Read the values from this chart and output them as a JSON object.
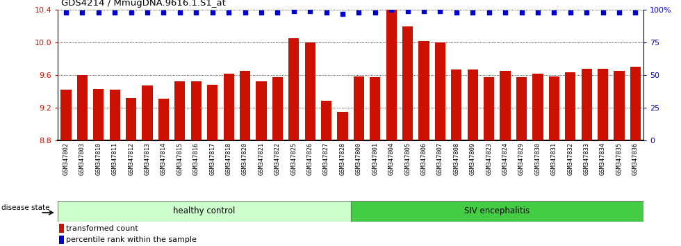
{
  "title": "GDS4214 / MmugDNA.9616.1.S1_at",
  "samples": [
    "GSM347802",
    "GSM347803",
    "GSM347810",
    "GSM347811",
    "GSM347812",
    "GSM347813",
    "GSM347814",
    "GSM347815",
    "GSM347816",
    "GSM347817",
    "GSM347818",
    "GSM347820",
    "GSM347821",
    "GSM347822",
    "GSM347825",
    "GSM347826",
    "GSM347827",
    "GSM347828",
    "GSM347800",
    "GSM347801",
    "GSM347804",
    "GSM347805",
    "GSM347806",
    "GSM347807",
    "GSM347808",
    "GSM347809",
    "GSM347823",
    "GSM347824",
    "GSM347829",
    "GSM347830",
    "GSM347831",
    "GSM347832",
    "GSM347833",
    "GSM347834",
    "GSM347835",
    "GSM347836"
  ],
  "bar_values": [
    9.42,
    9.6,
    9.43,
    9.42,
    9.32,
    9.47,
    9.31,
    9.52,
    9.52,
    9.48,
    9.62,
    9.65,
    9.52,
    9.57,
    10.05,
    10.0,
    9.28,
    9.15,
    9.58,
    9.57,
    10.52,
    10.2,
    10.02,
    10.0,
    9.67,
    9.67,
    9.57,
    9.65,
    9.57,
    9.62,
    9.58,
    9.63,
    9.68,
    9.68,
    9.65,
    9.7
  ],
  "percentile_values": [
    98,
    98,
    98,
    98,
    98,
    98,
    98,
    98,
    98,
    98,
    98,
    98,
    98,
    98,
    99,
    99,
    98,
    97,
    98,
    98,
    100,
    99,
    99,
    99,
    98,
    98,
    98,
    98,
    98,
    98,
    98,
    98,
    98,
    98,
    98,
    98
  ],
  "bar_color": "#cc1100",
  "percentile_color": "#0000cc",
  "ymin": 8.8,
  "ymax": 10.4,
  "ylim_right": [
    0,
    100
  ],
  "yticks_left": [
    8.8,
    9.2,
    9.6,
    10.0,
    10.4
  ],
  "yticks_right": [
    0,
    25,
    50,
    75,
    100
  ],
  "grid_lines": [
    9.2,
    9.6,
    10.0,
    10.4
  ],
  "healthy_control_count": 18,
  "disease_state_label": "disease state",
  "group1_label": "healthy control",
  "group2_label": "SIV encephalitis",
  "legend1_label": "transformed count",
  "legend2_label": "percentile rank within the sample",
  "group1_color": "#ccffcc",
  "group2_color": "#44cc44",
  "background_color": "#ffffff",
  "xtick_bg_color": "#d4d4d4"
}
